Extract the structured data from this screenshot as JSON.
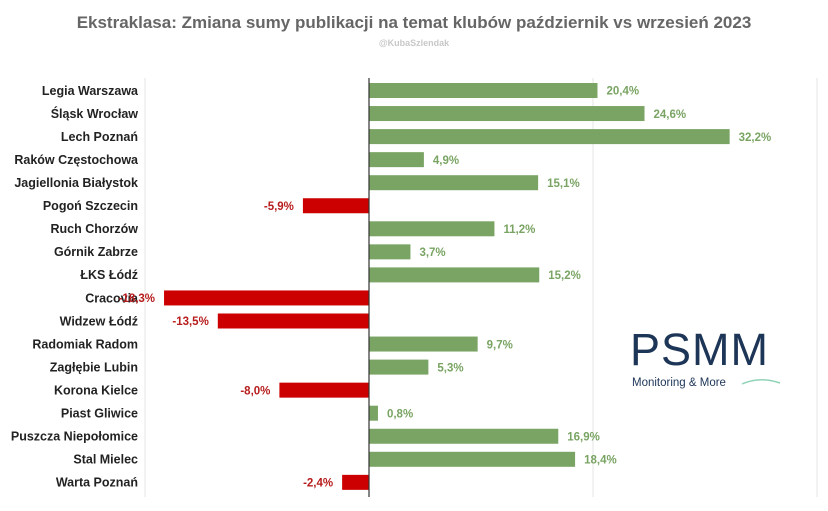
{
  "chart_data": {
    "type": "bar",
    "orientation": "horizontal",
    "title": "Ekstraklasa: Zmiana sumy publikacji na temat klubów październik vs wrzesień 2023",
    "subtitle": "@KubaSzlendak",
    "categories": [
      "Legia Warszawa",
      "Śląsk Wrocław",
      "Lech Poznań",
      "Raków Częstochowa",
      "Jagiellonia Białystok",
      "Pogoń Szczecin",
      "Ruch Chorzów",
      "Górnik Zabrze",
      "ŁKS Łódź",
      "Cracovia",
      "Widzew Łódź",
      "Radomiak Radom",
      "Zagłębie Lubin",
      "Korona Kielce",
      "Piast Gliwice",
      "Puszcza Niepołomice",
      "Stal Mielec",
      "Warta Poznań"
    ],
    "values": [
      20.4,
      24.6,
      32.2,
      4.9,
      15.1,
      -5.9,
      11.2,
      3.7,
      15.2,
      -18.3,
      -13.5,
      9.7,
      5.3,
      -8.0,
      0.8,
      16.9,
      18.4,
      -2.4
    ],
    "value_labels": [
      "20,4%",
      "24,6%",
      "32,2%",
      "4,9%",
      "15,1%",
      "-5,9%",
      "11,2%",
      "3,7%",
      "15,2%",
      "-18,3%",
      "-13,5%",
      "9,7%",
      "5,3%",
      "-8,0%",
      "0,8%",
      "16,9%",
      "18,4%",
      "-2,4%"
    ],
    "xlim": [
      -20,
      40
    ],
    "gridlines": [
      -20,
      0,
      20,
      40
    ],
    "grid": true,
    "colors": {
      "positive": "#79a463",
      "negative": "#cc0000",
      "positive_text": "#79a463",
      "negative_text": "#b71c1c",
      "gridline": "#e4e4e4"
    }
  },
  "logo": {
    "name": "PSMM",
    "tagline": "Monitoring & More",
    "color": "#1d3557",
    "swoosh_color": "#8fd3b6"
  }
}
